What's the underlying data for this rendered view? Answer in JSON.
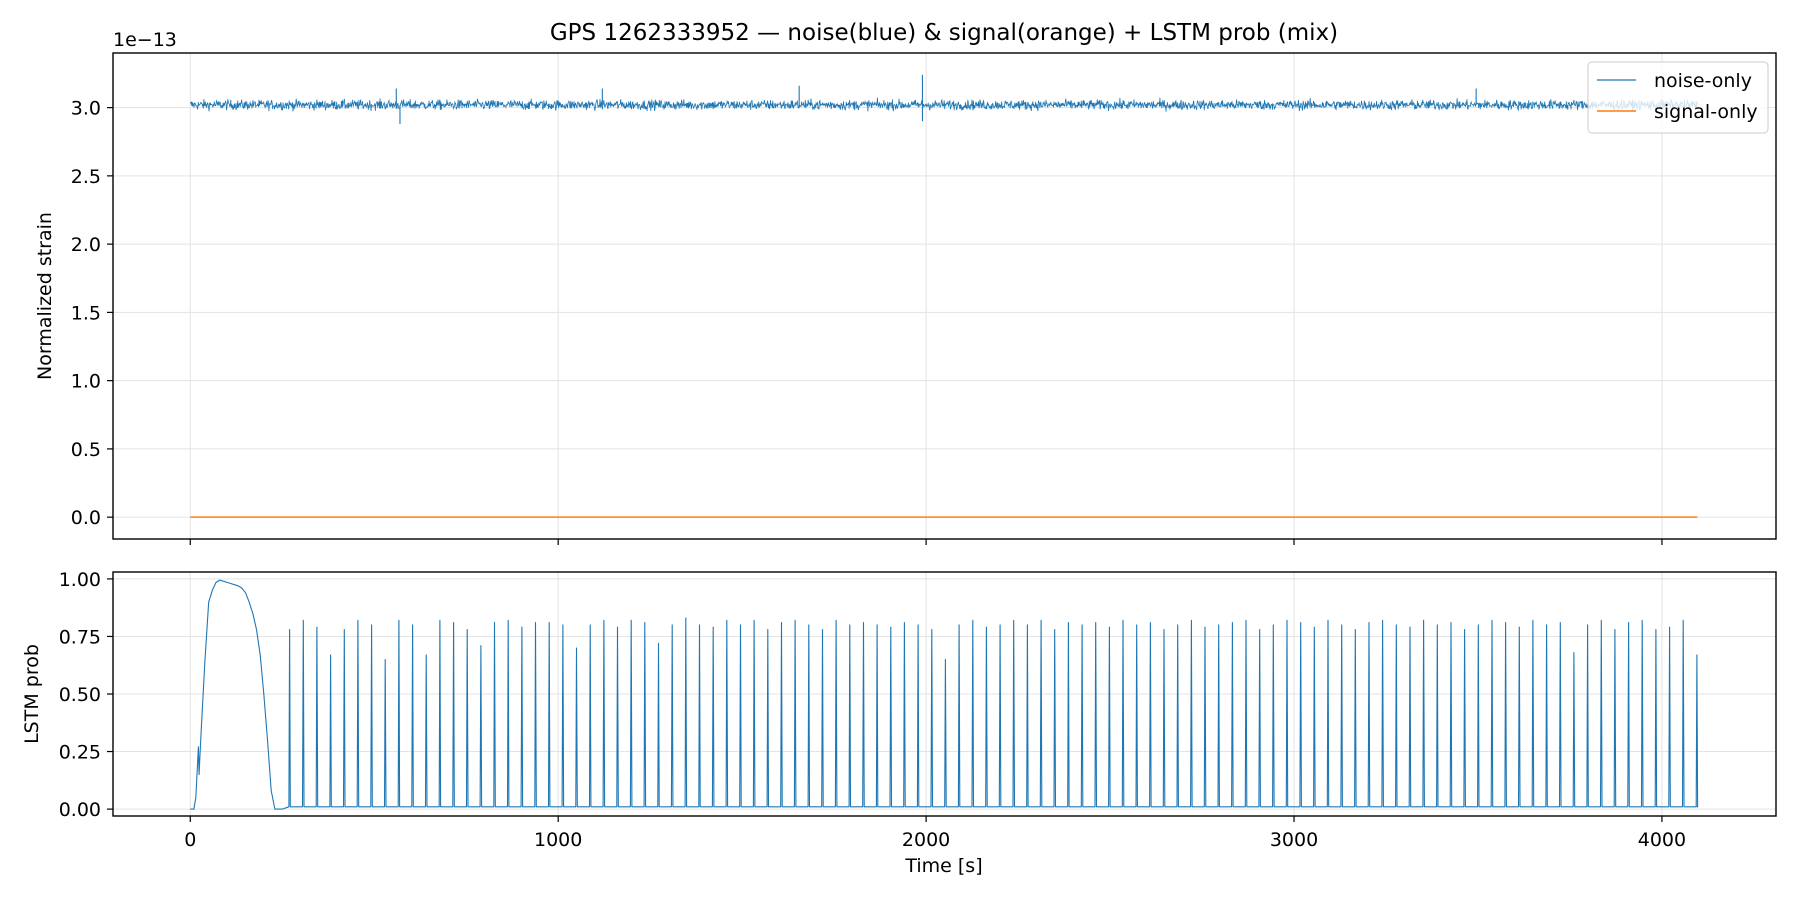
{
  "chart_data": [
    {
      "type": "line",
      "title": "GPS 1262333952 — noise(blue) & signal(orange) + LSTM prob (mix)",
      "ylabel": "Normalized strain",
      "y_scale_label": "1e−13",
      "xlim": [
        -210,
        4310
      ],
      "ylim": [
        -0.16,
        3.4
      ],
      "x_ticks": [
        0,
        1000,
        2000,
        3000,
        4000
      ],
      "y_ticks": [
        0.0,
        0.5,
        1.0,
        1.5,
        2.0,
        2.5,
        3.0
      ],
      "y_tick_labels": [
        "0.0",
        "0.5",
        "1.0",
        "1.5",
        "2.0",
        "2.5",
        "3.0"
      ],
      "grid": true,
      "legend_position": "top-right",
      "series": [
        {
          "name": "noise-only",
          "color": "#1f77b4",
          "x_range": [
            0,
            4096
          ],
          "mean": 3.02,
          "noise_amplitude": 0.035,
          "notable_spikes": [
            {
              "x": 1990,
              "y": 3.24
            },
            {
              "x": 1990,
              "y": 2.9
            },
            {
              "x": 1655,
              "y": 3.16
            },
            {
              "x": 1120,
              "y": 3.14
            },
            {
              "x": 560,
              "y": 3.14
            },
            {
              "x": 570,
              "y": 2.88
            },
            {
              "x": 3495,
              "y": 3.14
            }
          ]
        },
        {
          "name": "signal-only",
          "color": "#ff7f0e",
          "x": [
            0,
            4096
          ],
          "y": [
            0.0,
            0.0
          ]
        }
      ]
    },
    {
      "type": "line",
      "xlabel": "Time [s]",
      "ylabel": "LSTM prob",
      "xlim": [
        -210,
        4310
      ],
      "ylim": [
        -0.03,
        1.03
      ],
      "x_ticks": [
        0,
        1000,
        2000,
        3000,
        4000
      ],
      "y_ticks": [
        0.0,
        0.25,
        0.5,
        0.75,
        1.0
      ],
      "y_tick_labels": [
        "0.00",
        "0.25",
        "0.50",
        "0.75",
        "1.00"
      ],
      "grid": true,
      "series": [
        {
          "color": "#1f77b4",
          "initial_bump": {
            "x": [
              0,
              10,
              15,
              20,
              22,
              24,
              26,
              30,
              40,
              50,
              60,
              70,
              80,
              90,
              100,
              110,
              120,
              130,
              140,
              150,
              160,
              170,
              180,
              190,
              200,
              210,
              220,
              230,
              240,
              250
            ],
            "y": [
              0.0,
              0.0,
              0.05,
              0.2,
              0.27,
              0.15,
              0.22,
              0.35,
              0.65,
              0.9,
              0.95,
              0.985,
              0.995,
              0.99,
              0.985,
              0.98,
              0.975,
              0.97,
              0.96,
              0.94,
              0.9,
              0.85,
              0.78,
              0.67,
              0.5,
              0.3,
              0.08,
              0.0,
              0.0,
              0.0
            ]
          },
          "spike_x_start": 270,
          "spike_x_end": 4095,
          "spike_spacing": 37.5,
          "spike_peaks": [
            0.78,
            0.82,
            0.79,
            0.67,
            0.78,
            0.82,
            0.8,
            0.65,
            0.82,
            0.8,
            0.67,
            0.82,
            0.81,
            0.78,
            0.71,
            0.81,
            0.82,
            0.79,
            0.81,
            0.81,
            0.8,
            0.7,
            0.8,
            0.82,
            0.79,
            0.82,
            0.81,
            0.72,
            0.8,
            0.83,
            0.8,
            0.79,
            0.82,
            0.8,
            0.82,
            0.78,
            0.81,
            0.82,
            0.8,
            0.78,
            0.82,
            0.8,
            0.81,
            0.8,
            0.79,
            0.81,
            0.8,
            0.78,
            0.65,
            0.8,
            0.82,
            0.79,
            0.8,
            0.82,
            0.8,
            0.82,
            0.78,
            0.81,
            0.8,
            0.81,
            0.79,
            0.82,
            0.8,
            0.81,
            0.78,
            0.8,
            0.82,
            0.79,
            0.8,
            0.81,
            0.82,
            0.78,
            0.8,
            0.82,
            0.81,
            0.79,
            0.82,
            0.8,
            0.78,
            0.81,
            0.82,
            0.8,
            0.79,
            0.82,
            0.8,
            0.81,
            0.78,
            0.8,
            0.82,
            0.81,
            0.79,
            0.82,
            0.8,
            0.81,
            0.68,
            0.8,
            0.82,
            0.78,
            0.81,
            0.82,
            0.78,
            0.79,
            0.82,
            0.67
          ],
          "baseline": 0.01
        }
      ]
    }
  ]
}
